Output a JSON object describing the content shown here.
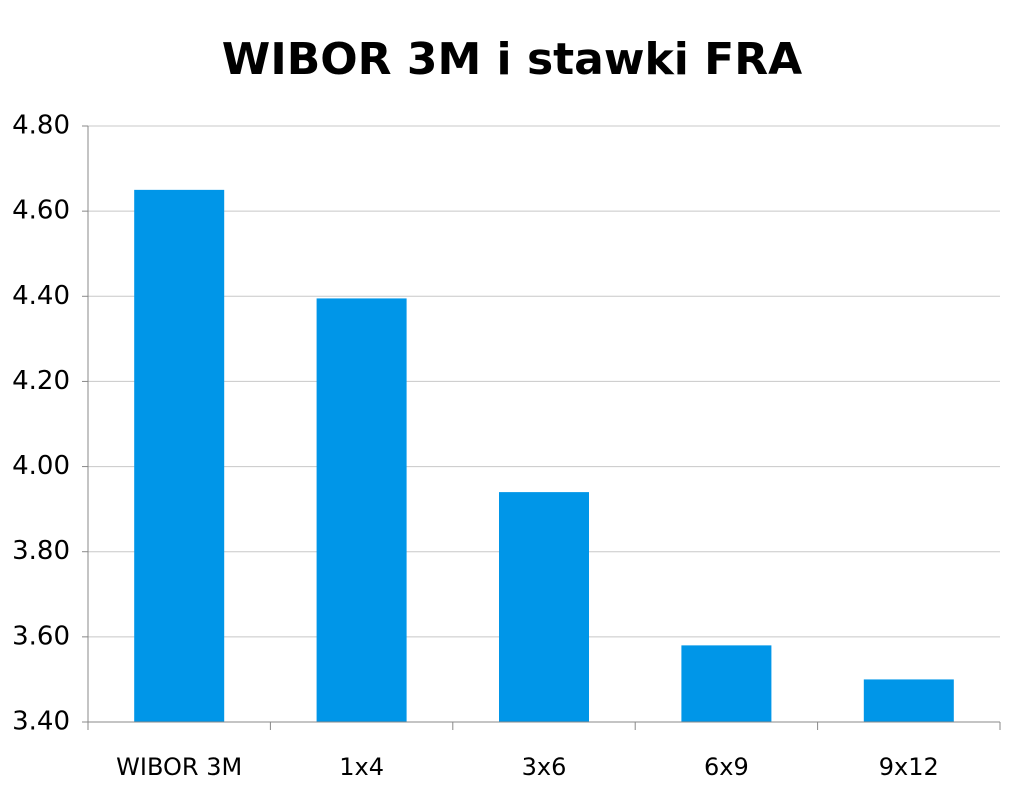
{
  "chart_data": {
    "type": "bar",
    "title": "WIBOR 3M i stawki FRA",
    "categories": [
      "WIBOR 3M",
      "1x4",
      "3x6",
      "6x9",
      "9x12"
    ],
    "values": [
      4.65,
      4.395,
      3.94,
      3.58,
      3.5
    ],
    "color": "#0096e8",
    "ylim": [
      3.4,
      4.8
    ],
    "yticks": [
      {
        "value": 3.4,
        "label": "3.40"
      },
      {
        "value": 3.6,
        "label": "3.60"
      },
      {
        "value": 3.8,
        "label": "3.80"
      },
      {
        "value": 4.0,
        "label": "4.00"
      },
      {
        "value": 4.2,
        "label": "4.20"
      },
      {
        "value": 4.4,
        "label": "4.40"
      },
      {
        "value": 4.6,
        "label": "4.60"
      },
      {
        "value": 4.8,
        "label": "4.80"
      }
    ],
    "grid": true
  }
}
